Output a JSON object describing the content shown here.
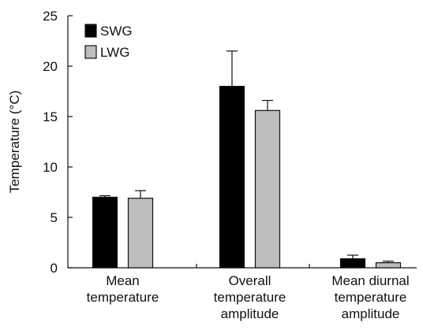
{
  "chart_data": {
    "type": "bar",
    "title": "",
    "xlabel": "",
    "ylabel": "Temperature (°C)",
    "ylim": [
      0,
      25
    ],
    "yticks": [
      0,
      5,
      10,
      15,
      20,
      25
    ],
    "legend_position": "top-left",
    "grid": false,
    "categories": [
      [
        "Mean",
        "temperature"
      ],
      [
        "Overall",
        "temperature",
        "amplitude"
      ],
      [
        "Mean diurnal",
        "temperature",
        "amplitude"
      ]
    ],
    "series": [
      {
        "name": "SWG",
        "color": "#000000",
        "values": [
          7.0,
          18.0,
          0.9
        ],
        "errors": [
          0.15,
          3.5,
          0.35
        ]
      },
      {
        "name": "LWG",
        "color": "#bdbdbd",
        "values": [
          6.9,
          15.6,
          0.5
        ],
        "errors": [
          0.75,
          1.0,
          0.15
        ]
      }
    ]
  }
}
